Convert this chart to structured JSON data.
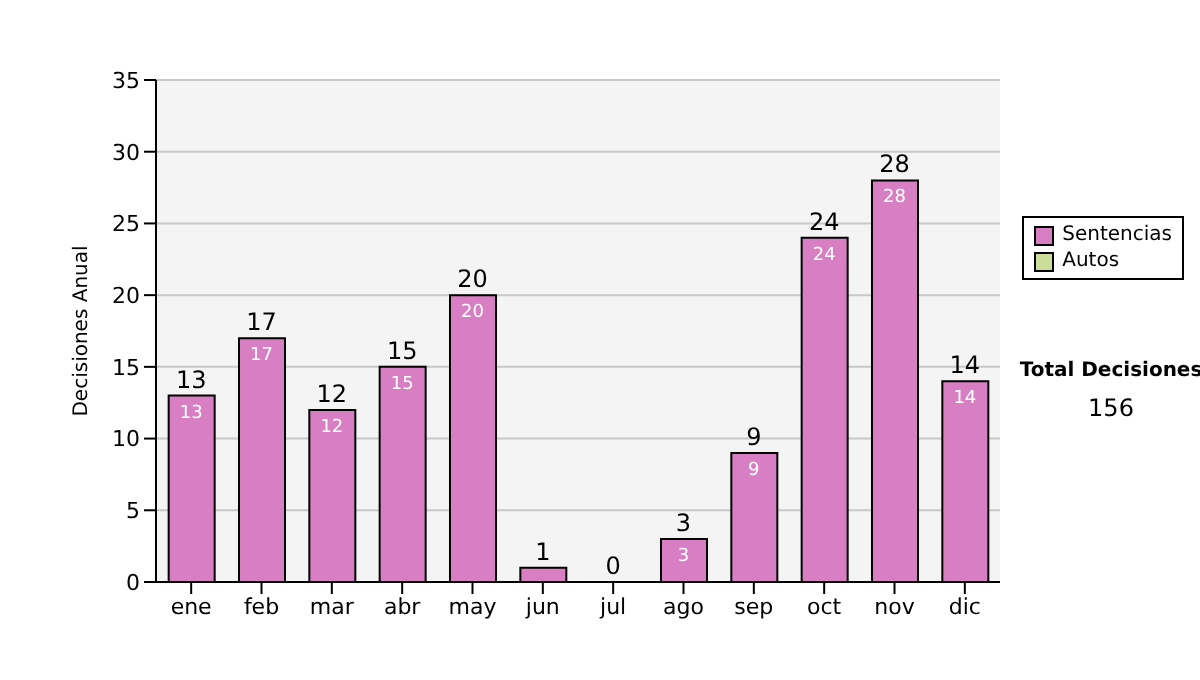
{
  "chart_data": {
    "type": "bar",
    "ylabel": "Decisiones Anual",
    "categories": [
      "ene",
      "feb",
      "mar",
      "abr",
      "may",
      "jun",
      "jul",
      "ago",
      "sep",
      "oct",
      "nov",
      "dic"
    ],
    "stacked": true,
    "series": [
      {
        "name": "Sentencias",
        "color": "#d77fc2",
        "values": [
          13,
          17,
          12,
          15,
          20,
          1,
          0,
          3,
          9,
          24,
          28,
          14
        ],
        "value_labels": [
          "13",
          "17",
          "12",
          "15",
          "20",
          null,
          null,
          "3",
          "9",
          "24",
          "28",
          "14"
        ]
      },
      {
        "name": "Autos",
        "color": "#ccdd99",
        "values": [
          0,
          0,
          0,
          0,
          0,
          0,
          0,
          0,
          0,
          0,
          0,
          0
        ]
      }
    ],
    "totals": [
      "13",
      "17",
      "12",
      "15",
      "20",
      "1",
      "0",
      "3",
      "9",
      "24",
      "28",
      "14"
    ],
    "ylim": [
      0,
      35
    ],
    "yticks": [
      0,
      5,
      10,
      15,
      20,
      25,
      30,
      35
    ],
    "grid": "y",
    "legend": "right",
    "annotations": [
      "Total Decisiones",
      "156"
    ]
  }
}
